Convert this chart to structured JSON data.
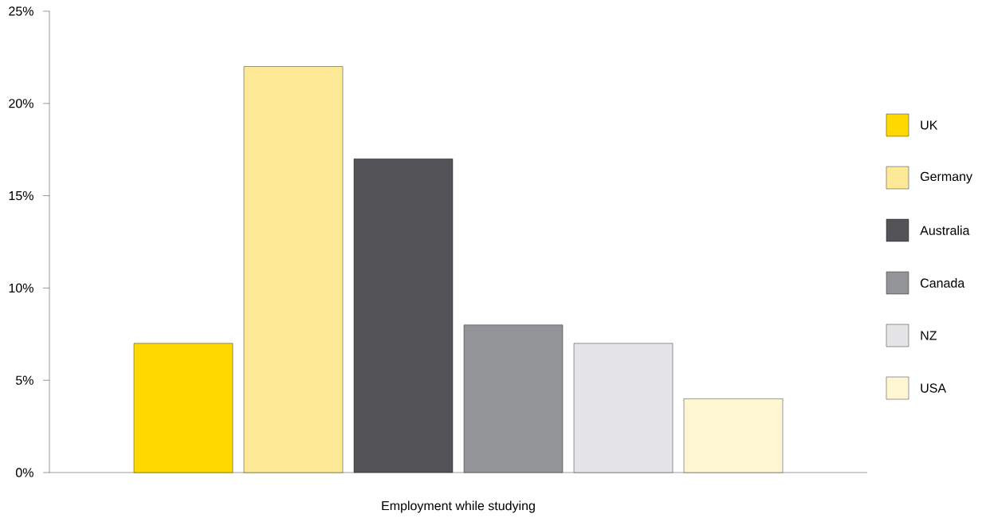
{
  "chart_data": {
    "type": "bar",
    "categories": [
      "Employment while studying"
    ],
    "series": [
      {
        "name": "UK",
        "color": "#ffd900",
        "values": [
          7
        ]
      },
      {
        "name": "Germany",
        "color": "#fde996",
        "values": [
          22
        ]
      },
      {
        "name": "Australia",
        "color": "#545458",
        "values": [
          17
        ]
      },
      {
        "name": "Canada",
        "color": "#939498",
        "values": [
          8
        ]
      },
      {
        "name": "NZ",
        "color": "#e5e5e7",
        "values": [
          7
        ]
      },
      {
        "name": "USA",
        "color": "#fff6d4",
        "values": [
          4
        ]
      }
    ],
    "ylim": [
      0,
      25
    ],
    "yticks": [
      {
        "value": 0,
        "label": "0%"
      },
      {
        "value": 5,
        "label": "5%"
      },
      {
        "value": 10,
        "label": "10%"
      },
      {
        "value": 15,
        "label": "15%"
      },
      {
        "value": 20,
        "label": "20%"
      },
      {
        "value": 25,
        "label": "25%"
      }
    ],
    "grid": false,
    "legend": "right"
  }
}
